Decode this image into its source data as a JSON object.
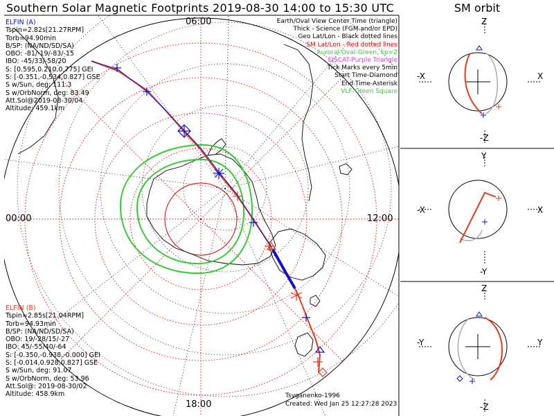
{
  "title": "Southern Solar Magnetic Footprints 2019-08-30 14:00 to 15:30 UTC",
  "orbit_title": "SM orbit",
  "time_labels": {
    "top": "06:00",
    "left": "00:00",
    "right": "12:00",
    "bottom": "18:00"
  },
  "elfin_a": {
    "name": "ELFIN (A)",
    "lines": [
      "Tspin=2.82s[21.27RPM]",
      "Torb=94.90min",
      "B/SP: (NA/ND/SD/SA)",
      "OBO: -81/-19/-83/-15",
      "IBO: -45/33/-58/20",
      "S: [0.595,0.210,0.775] GEI",
      "S: [-0.351,-0.534,0.827] GSE",
      "S w/Sun, deg: 111.3",
      "S w/OrbNorm, deg: 83.49",
      "Att.Sol@2019-08-30/04",
      "Altitude: 459.1km"
    ]
  },
  "elfin_b": {
    "name": "ELFIN (B)",
    "lines": [
      "Tspin=2.85s[21.04RPM]",
      "Torb=94.93min",
      "B/SP: (NA/ND/SD/SA)",
      "OBO: 19/-28/15/-27",
      "IBO: 45/-55/40/-64",
      "S: [-0.350,-0.938,-0.000] GEI",
      "S: [-0.014,0.928,0.827] GSE",
      "S w/Sun, deg: 91.07",
      "S w/OrbNorm, deg: 53.96",
      "Att.Sol@: 2019-08-30/02",
      "Altitude: 458.9km"
    ]
  },
  "legend": [
    {
      "text": "Earth/Oval View Center Time (triangle)",
      "color": "#000000"
    },
    {
      "text": "Thick - Science (FGM and/or EPD)",
      "color": "#000000"
    },
    {
      "text": "Geo Lat/Lon - Black dotted lines",
      "color": "#000000"
    },
    {
      "text": "SM Lat/Lon - Red dotted lines",
      "color": "#e00000"
    },
    {
      "text": "Auroral Oval-Green, kp=2",
      "color": "#33cc33"
    },
    {
      "text": "EISCAT-Purple Triangle",
      "color": "#cc44cc"
    },
    {
      "text": "Tick Marks every 5min",
      "color": "#000000"
    },
    {
      "text": "Start Time-Diamond",
      "color": "#000000"
    },
    {
      "text": "End Time-Asterisk",
      "color": "#000000"
    },
    {
      "text": "VLF-Green Square",
      "color": "#33cc33"
    }
  ],
  "credits": {
    "author": "Tsyganenko-1996",
    "created": "Created: Wed Jan 25 12:27:28 2023"
  },
  "orbit_panels": [
    {
      "top": "Z",
      "bottom": "-Z",
      "left": "-X",
      "right": "X"
    },
    {
      "top": "Y",
      "bottom": "-Y",
      "left": "-X",
      "right": "X"
    },
    {
      "top": "Z",
      "bottom": "-Z",
      "left": "-Y",
      "right": "Y"
    }
  ],
  "colors": {
    "elfin_a": "#1010d0",
    "elfin_b": "#e83a1a",
    "oval": "#33cc33",
    "sm_grid": "#e00000",
    "geo_grid": "#000000"
  },
  "chart_data": {
    "type": "polar footprint map",
    "projection": "southern hemisphere, magnetic local time",
    "sm_latitude_circles_deg": [
      -50,
      -60,
      -70,
      -80
    ],
    "mlt_labels": [
      "00:00",
      "06:00",
      "12:00",
      "18:00"
    ],
    "series": [
      {
        "name": "ELFIN (A)",
        "color": "#1010d0"
      },
      {
        "name": "ELFIN (B)",
        "color": "#e83a1a"
      }
    ],
    "auroral_oval_kp": 2
  }
}
